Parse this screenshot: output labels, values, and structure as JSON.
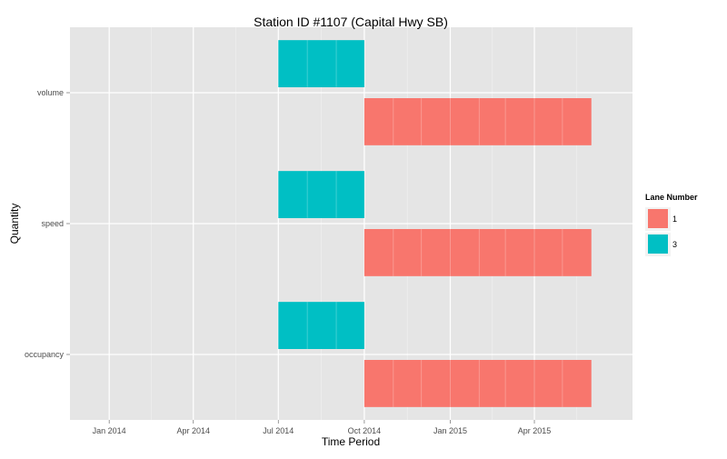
{
  "chart_data": {
    "type": "bar",
    "subtype": "gantt",
    "title": "Station ID #1107 (Capital Hwy SB)",
    "xlabel": "Time Period",
    "ylabel": "Quantity",
    "x_axis": {
      "kind": "date",
      "range": [
        "2013-11-20",
        "2015-07-15"
      ],
      "ticks": [
        {
          "date": "2014-01-01",
          "label": "Jan 2014"
        },
        {
          "date": "2014-04-01",
          "label": "Apr 2014"
        },
        {
          "date": "2014-07-01",
          "label": "Jul 2014"
        },
        {
          "date": "2014-10-01",
          "label": "Oct 2014"
        },
        {
          "date": "2015-01-01",
          "label": "Jan 2015"
        },
        {
          "date": "2015-04-01",
          "label": "Apr 2015"
        }
      ]
    },
    "categories": [
      "volume",
      "speed",
      "occupancy"
    ],
    "grid": true,
    "legend": {
      "title": "Lane Number",
      "position": "right",
      "entries": [
        {
          "label": "1",
          "color": "#F8766D"
        },
        {
          "label": "3",
          "color": "#00BFC4"
        }
      ]
    },
    "series": [
      {
        "name": "1",
        "color": "#F8766D",
        "segments": [
          {
            "category": "volume",
            "start": "2014-10-01",
            "end": "2015-06-01"
          },
          {
            "category": "speed",
            "start": "2014-10-01",
            "end": "2015-06-01"
          },
          {
            "category": "occupancy",
            "start": "2014-10-01",
            "end": "2015-06-01"
          }
        ]
      },
      {
        "name": "3",
        "color": "#00BFC4",
        "segments": [
          {
            "category": "volume",
            "start": "2014-07-01",
            "end": "2014-10-01"
          },
          {
            "category": "speed",
            "start": "2014-07-01",
            "end": "2014-10-01"
          },
          {
            "category": "occupancy",
            "start": "2014-07-01",
            "end": "2014-10-01"
          }
        ]
      }
    ]
  }
}
